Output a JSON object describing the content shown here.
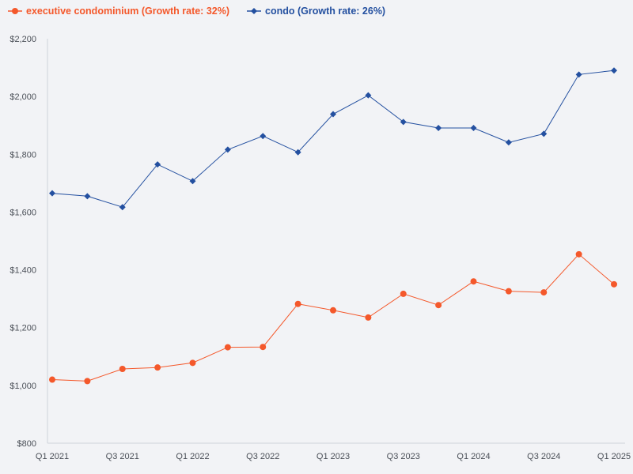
{
  "chart_data": {
    "type": "line",
    "title": "",
    "xlabel": "",
    "ylabel": "",
    "categories": [
      "Q1 2021",
      "Q2 2021",
      "Q3 2021",
      "Q4 2021",
      "Q1 2022",
      "Q2 2022",
      "Q3 2022",
      "Q4 2022",
      "Q1 2023",
      "Q2 2023",
      "Q3 2023",
      "Q4 2023",
      "Q1 2024",
      "Q2 2024",
      "Q3 2024",
      "Q4 2024",
      "Q1 2025"
    ],
    "x_tick_labels": [
      "Q1 2021",
      "",
      "Q3 2021",
      "",
      "Q1 2022",
      "",
      "Q3 2022",
      "",
      "Q1 2023",
      "",
      "Q3 2023",
      "",
      "Q1 2024",
      "",
      "Q3 2024",
      "",
      "Q1 2025"
    ],
    "ylim": [
      800,
      2200
    ],
    "y_ticks": [
      800,
      1000,
      1200,
      1400,
      1600,
      1800,
      2000,
      2200
    ],
    "y_tick_labels": [
      "$800",
      "$1,000",
      "$1,200",
      "$1,400",
      "$1,600",
      "$1,800",
      "$2,000",
      "$2,200"
    ],
    "grid": false,
    "legend_position": "top-left",
    "series": [
      {
        "name": "executive condominium (Growth rate: 32%)",
        "color": "#f4582b",
        "marker": "circle",
        "values": [
          1020,
          1015,
          1057,
          1062,
          1078,
          1132,
          1133,
          1282,
          1260,
          1235,
          1317,
          1278,
          1360,
          1326,
          1322,
          1454,
          1350
        ]
      },
      {
        "name": "condo (Growth rate: 26%)",
        "color": "#2450a0",
        "marker": "diamond",
        "values": [
          1665,
          1655,
          1617,
          1765,
          1707,
          1816,
          1863,
          1807,
          1939,
          2004,
          1912,
          1891,
          1891,
          1841,
          1871,
          2076,
          2090
        ]
      }
    ]
  }
}
